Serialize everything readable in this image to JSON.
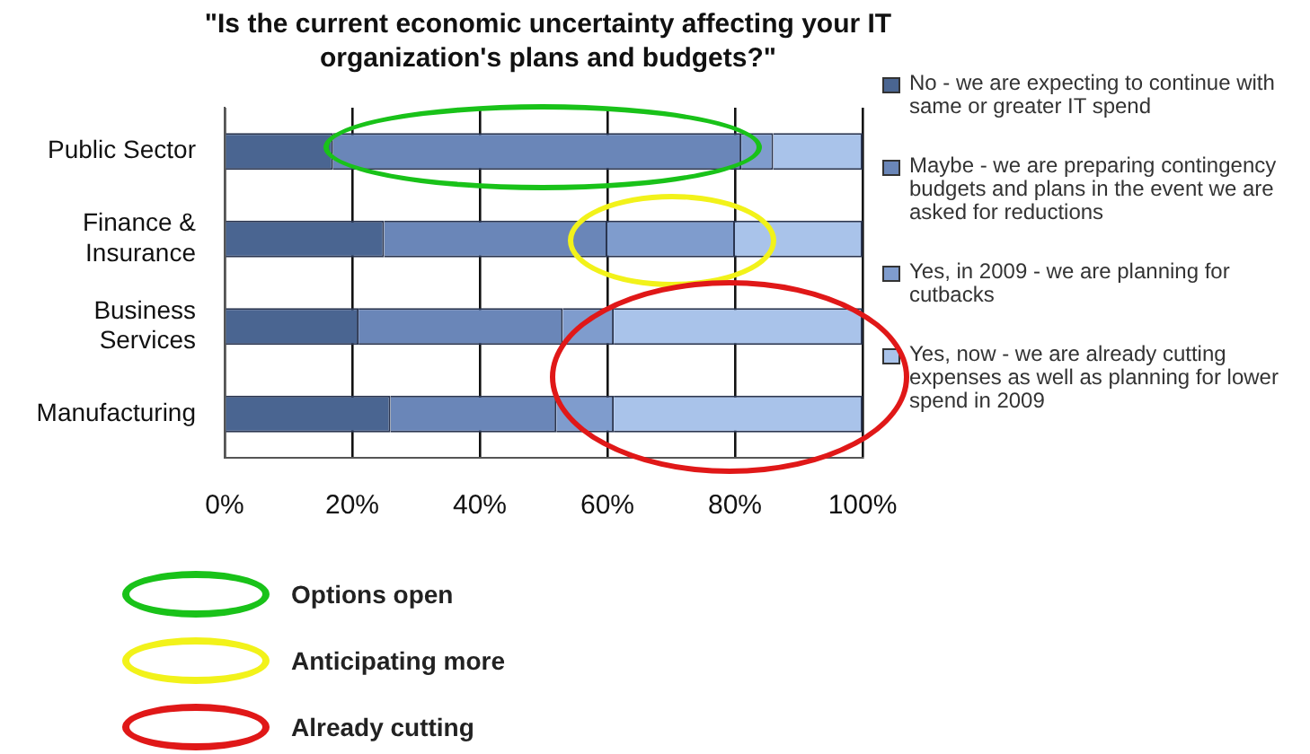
{
  "chart_data": {
    "type": "bar",
    "orientation": "horizontal",
    "stacked": true,
    "title": "\"Is the current economic uncertainty affecting your IT organization's plans and budgets?\"",
    "categories": [
      "Public Sector",
      "Finance & Insurance",
      "Business Services",
      "Manufacturing"
    ],
    "series": [
      {
        "name": "No - we are expecting to continue with same or greater IT spend",
        "color": "#4a6591",
        "values": [
          17,
          25,
          21,
          26
        ]
      },
      {
        "name": "Maybe - we are preparing contingency budgets and plans in the event we are asked for reductions",
        "color": "#6a86b8",
        "values": [
          64,
          35,
          32,
          26
        ]
      },
      {
        "name": "Yes, in 2009 - we are planning for cutbacks",
        "color": "#7f9ccd",
        "values": [
          5,
          20,
          8,
          9
        ]
      },
      {
        "name": "Yes, now - we are already cutting expenses as well as planning for lower spend in 2009",
        "color": "#a9c3ea",
        "values": [
          14,
          20,
          39,
          39
        ]
      }
    ],
    "xlim": [
      0,
      100
    ],
    "xticks": [
      {
        "value": 0,
        "label": "0%"
      },
      {
        "value": 20,
        "label": "20%"
      },
      {
        "value": 40,
        "label": "40%"
      },
      {
        "value": 60,
        "label": "60%"
      },
      {
        "value": 80,
        "label": "80%"
      },
      {
        "value": 100,
        "label": "100%"
      }
    ],
    "grid": "x",
    "legend": "right",
    "annotations": [
      "Options open",
      "Anticipating more",
      "Already cutting"
    ]
  }
}
